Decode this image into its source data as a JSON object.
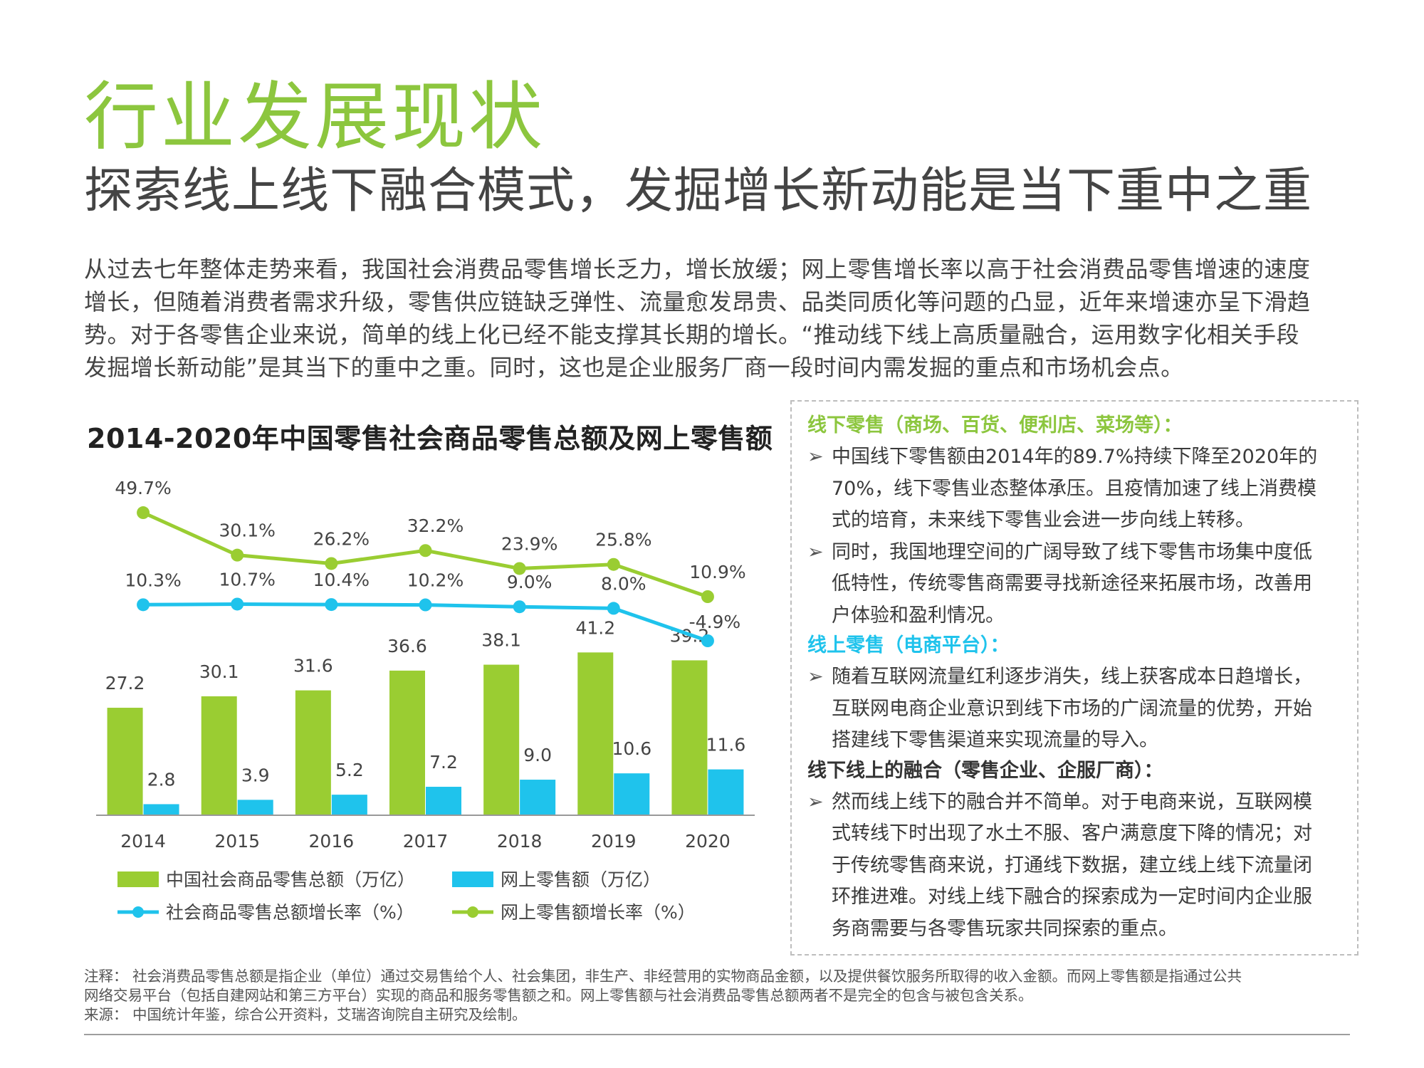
{
  "page": {
    "title": "行业发展现状",
    "subtitle": "探索线上线下融合模式，发掘增长新动能是当下重中之重",
    "intro_lines": [
      "从过去七年整体走势来看，我国社会消费品零售增长乏力，增长放缓；网上零售增长率以高于社会消费品零售增速的速度",
      "增长，但随着消费者需求升级，零售供应链缺乏弹性、流量愈发昂贵、品类同质化等问题的凸显，近年来增速亦呈下滑趋",
      "势。对于各零售企业来说，简单的线上化已经不能支撑其长期的增长。“推动线下线上高质量融合，运用数字化相关手段",
      "发掘增长新动能”是其当下的重中之重。同时，这也是企业服务厂商一段时间内需发掘的重点和市场机会点。"
    ]
  },
  "panel": {
    "sections": [
      {
        "heading": "线下零售（商场、百货、便利店、菜场等）：",
        "color": "#8cc63e",
        "bullets": [
          [
            "中国线下零售额由2014年的89.7%持续下降至2020年的",
            "70%，线下零售业态整体承压。且疫情加速了线上消费模",
            "式的培育，未来线下零售业会进一步向线上转移。"
          ],
          [
            "同时，我国地理空间的广阔导致了线下零售市场集中度低",
            "低特性，传统零售商需要寻找新途径来拓展市场，改善用",
            "户体验和盈利情况。"
          ]
        ]
      },
      {
        "heading": "线上零售（电商平台）：",
        "color": "#1fc3ec",
        "bullets": [
          [
            "随着互联网流量红利逐步消失，线上获客成本日趋增长，",
            "互联网电商企业意识到线下市场的广阔流量的优势，开始",
            "搭建线下零售渠道来实现流量的导入。"
          ]
        ]
      },
      {
        "heading": "线下线上的融合（零售企业、企服厂商）：",
        "color": "#333333",
        "bullets": [
          [
            "然而线上线下的融合并不简单。对于电商来说，互联网模",
            "式转线下时出现了水土不服、客户满意度下降的情况；对",
            "于传统零售商来说，打通线下数据，建立线上线下流量闭",
            "环推进难。对线上线下融合的探索成为一定时间内企业服",
            "务商需要与各零售玩家共同探索的重点。"
          ]
        ]
      }
    ]
  },
  "notes": {
    "lines": [
      "注释：  社会消费品零售总额是指企业（单位）通过交易售给个人、社会集团，非生产、非经营用的实物商品金额，以及提供餐饮服务所取得的收入金额。而网上零售额是指通过公共",
      "网络交易平台（包括自建网站和第三方平台）实现的商品和服务零售额之和。网上零售额与社会消费品零售总额两者不是完全的包含与被包含关系。",
      "来源：  中国统计年鉴，综合公开资料，艾瑞咨询院自主研究及绘制。"
    ]
  },
  "chart_data": {
    "type": "bar",
    "title": "2014-2020年中国零售社会商品零售总额及网上零售额",
    "categories": [
      "2014",
      "2015",
      "2016",
      "2017",
      "2018",
      "2019",
      "2020"
    ],
    "bar_series": [
      {
        "name": "中国社会商品零售总额（万亿）",
        "color": "#9acd32",
        "values": [
          27.2,
          30.1,
          31.6,
          36.6,
          38.1,
          41.2,
          39.2
        ],
        "labels": [
          "27.2",
          "30.1",
          "31.6",
          "36.6",
          "38.1",
          "41.2",
          "39.2"
        ]
      },
      {
        "name": "网上零售额（万亿）",
        "color": "#1fc3ec",
        "values": [
          2.8,
          3.9,
          5.2,
          7.2,
          9.0,
          10.6,
          11.6
        ],
        "labels": [
          "2.8",
          "3.9",
          "5.2",
          "7.2",
          "9.0",
          "10.6",
          "11.6"
        ]
      }
    ],
    "line_series": [
      {
        "name": "社会商品零售总额增长率（%）",
        "color": "#1fc3ec",
        "values": [
          10.3,
          10.7,
          10.4,
          10.2,
          9.0,
          8.0,
          -4.9
        ],
        "labels": [
          "10.3%",
          "10.7%",
          "10.4%",
          "10.2%",
          "9.0%",
          "8.0%",
          "-4.9%"
        ]
      },
      {
        "name": "网上零售额增长率（%）",
        "color": "#9acd32",
        "values": [
          49.7,
          30.1,
          26.2,
          32.2,
          23.9,
          25.8,
          10.9
        ],
        "labels": [
          "49.7%",
          "30.1%",
          "26.2%",
          "32.2%",
          "23.9%",
          "25.8%",
          "10.9%"
        ]
      }
    ]
  }
}
